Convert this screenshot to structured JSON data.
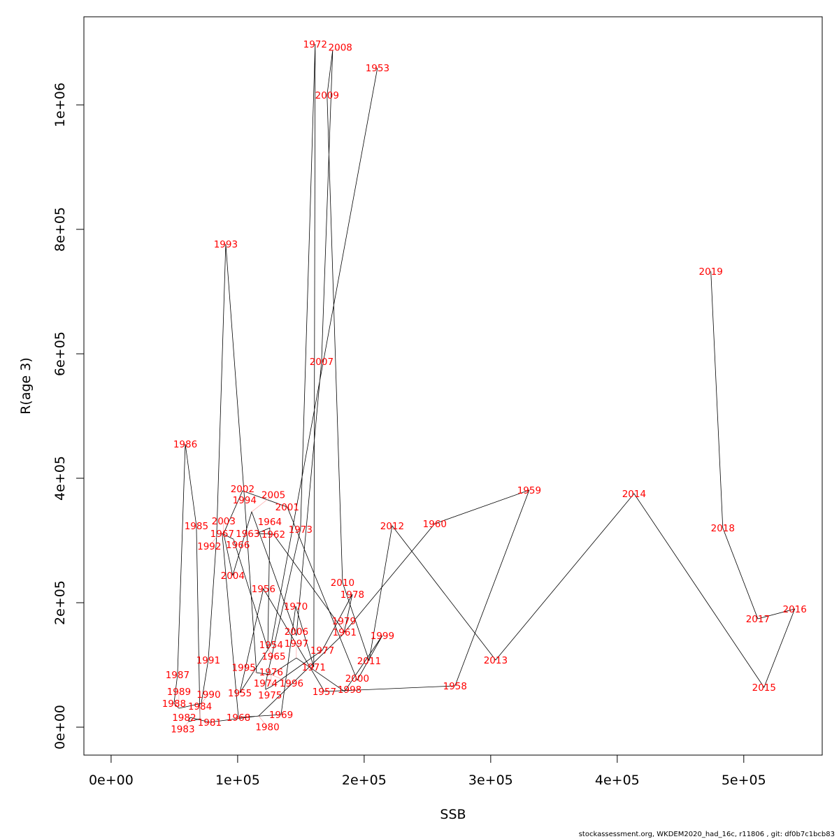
{
  "chart_data": {
    "type": "line",
    "title": "",
    "xlabel": "SSB",
    "ylabel": "R(age 3)",
    "xlim": [
      -21500,
      562000
    ],
    "ylim": [
      -44900,
      1141600
    ],
    "grid": false,
    "x_ticks": [
      0,
      100000,
      200000,
      300000,
      400000,
      500000
    ],
    "x_tick_labels": [
      "0e+00",
      "1e+05",
      "2e+05",
      "3e+05",
      "4e+05",
      "5e+05"
    ],
    "y_ticks": [
      0,
      200000,
      400000,
      600000,
      800000,
      1000000
    ],
    "y_tick_labels": [
      "0e+00",
      "2e+05",
      "4e+05",
      "6e+05",
      "8e+05",
      "1e+06"
    ],
    "line_color": "#000000",
    "label_color": "#ff0000",
    "points": [
      {
        "year": "1953",
        "ssb": 210500,
        "r": 1059600
      },
      {
        "year": "1954",
        "ssb": 126500,
        "r": 132600
      },
      {
        "year": "1955",
        "ssb": 101700,
        "r": 55100
      },
      {
        "year": "1956",
        "ssb": 120400,
        "r": 222500
      },
      {
        "year": "1957",
        "ssb": 168500,
        "r": 57300
      },
      {
        "year": "1958",
        "ssb": 271800,
        "r": 66300
      },
      {
        "year": "1959",
        "ssb": 330400,
        "r": 380900
      },
      {
        "year": "1960",
        "ssb": 255800,
        "r": 327000
      },
      {
        "year": "1961",
        "ssb": 184500,
        "r": 152800
      },
      {
        "year": "1962",
        "ssb": 128200,
        "r": 310100
      },
      {
        "year": "1963",
        "ssb": 114900,
        "r": 311200
      },
      {
        "year": "1964",
        "ssb": 125400,
        "r": 320200
      },
      {
        "year": "1965",
        "ssb": 123800,
        "r": 125800
      },
      {
        "year": "1966",
        "ssb": 96700,
        "r": 302200
      },
      {
        "year": "1967",
        "ssb": 87800,
        "r": 311200
      },
      {
        "year": "1968",
        "ssb": 100600,
        "r": 15700
      },
      {
        "year": "1969",
        "ssb": 134300,
        "r": 20200
      },
      {
        "year": "1970",
        "ssb": 145900,
        "r": 194400
      },
      {
        "year": "1971",
        "ssb": 160200,
        "r": 96600
      },
      {
        "year": "1972",
        "ssb": 161300,
        "r": 1097800
      },
      {
        "year": "1973",
        "ssb": 149700,
        "r": 318000
      },
      {
        "year": "1974",
        "ssb": 122100,
        "r": 70800
      },
      {
        "year": "1975",
        "ssb": 122100,
        "r": 60700
      },
      {
        "year": "1976",
        "ssb": 126500,
        "r": 65200
      },
      {
        "year": "1977",
        "ssb": 166900,
        "r": 123600
      },
      {
        "year": "1978",
        "ssb": 190600,
        "r": 213500
      },
      {
        "year": "1979",
        "ssb": 184000,
        "r": 150600
      },
      {
        "year": "1980",
        "ssb": 116600,
        "r": 18000
      },
      {
        "year": "1981",
        "ssb": 77900,
        "r": 7900
      },
      {
        "year": "1982",
        "ssb": 62400,
        "r": 15700
      },
      {
        "year": "1983",
        "ssb": 61300,
        "r": 9000
      },
      {
        "year": "1984",
        "ssb": 70200,
        "r": 13500
      },
      {
        "year": "1985",
        "ssb": 67400,
        "r": 323600
      },
      {
        "year": "1986",
        "ssb": 58600,
        "r": 455100
      },
      {
        "year": "1987",
        "ssb": 52500,
        "r": 84300
      },
      {
        "year": "1988",
        "ssb": 49700,
        "r": 38200
      },
      {
        "year": "1989",
        "ssb": 53600,
        "r": 30300
      },
      {
        "year": "1990",
        "ssb": 71300,
        "r": 38200
      },
      {
        "year": "1991",
        "ssb": 76800,
        "r": 107900
      },
      {
        "year": "1992",
        "ssb": 83400,
        "r": 305600
      },
      {
        "year": "1993",
        "ssb": 90600,
        "r": 776400
      },
      {
        "year": "1994",
        "ssb": 105500,
        "r": 365200
      },
      {
        "year": "1995",
        "ssb": 114900,
        "r": 87600
      },
      {
        "year": "1996",
        "ssb": 126500,
        "r": 84300
      },
      {
        "year": "1997",
        "ssb": 146400,
        "r": 111200
      },
      {
        "year": "1998",
        "ssb": 184500,
        "r": 57300
      },
      {
        "year": "1999",
        "ssb": 214400,
        "r": 147200
      },
      {
        "year": "2000",
        "ssb": 194500,
        "r": 75300
      },
      {
        "year": "2001",
        "ssb": 139200,
        "r": 353900
      },
      {
        "year": "2002",
        "ssb": 103900,
        "r": 379800
      },
      {
        "year": "2003",
        "ssb": 88900,
        "r": 311200
      },
      {
        "year": "2004",
        "ssb": 96100,
        "r": 243800
      },
      {
        "year": "2005",
        "ssb": 111100,
        "r": 346100
      },
      {
        "year": "2006",
        "ssb": 146400,
        "r": 147200
      },
      {
        "year": "2007",
        "ssb": 166300,
        "r": 587600
      },
      {
        "year": "2008",
        "ssb": 175100,
        "r": 1087600
      },
      {
        "year": "2009",
        "ssb": 170700,
        "r": 1015700
      },
      {
        "year": "2010",
        "ssb": 182900,
        "r": 232600
      },
      {
        "year": "2011",
        "ssb": 203900,
        "r": 106700
      },
      {
        "year": "2012",
        "ssb": 222100,
        "r": 323600
      },
      {
        "year": "2013",
        "ssb": 303900,
        "r": 107900
      },
      {
        "year": "2014",
        "ssb": 413300,
        "r": 375300
      },
      {
        "year": "2015",
        "ssb": 516000,
        "r": 64000
      },
      {
        "year": "2016",
        "ssb": 540300,
        "r": 189900
      },
      {
        "year": "2017",
        "ssb": 511100,
        "r": 174200
      },
      {
        "year": "2018",
        "ssb": 483400,
        "r": 320200
      },
      {
        "year": "2019",
        "ssb": 474000,
        "r": 732600
      }
    ]
  },
  "footer": "stockassessment.org, WKDEM2020_had_16c, r11806 , git: df0b7c1bcb83"
}
